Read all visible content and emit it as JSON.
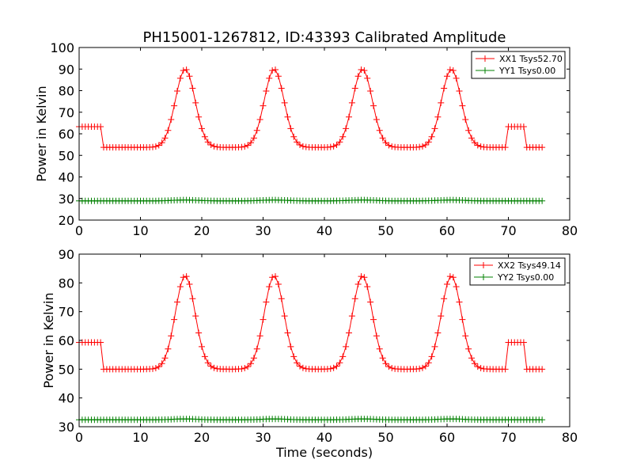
{
  "figure": {
    "title": "PH15001-1267812, ID:43393 Calibrated Amplitude",
    "xlabel": "Time (seconds)"
  },
  "chart_data": [
    {
      "type": "line",
      "title": "PH15001-1267812, ID:43393 Calibrated Amplitude",
      "ylabel": "Power in Kelvin",
      "xlabel": "",
      "xlim": [
        0,
        80
      ],
      "ylim": [
        20,
        100
      ],
      "xticks": [
        0,
        10,
        20,
        30,
        40,
        50,
        60,
        70,
        80
      ],
      "yticks": [
        20,
        30,
        40,
        50,
        60,
        70,
        80,
        90,
        100
      ],
      "grid": false,
      "legend_position": "top-right",
      "series": [
        {
          "name": "XX1 Tsys52.70",
          "color": "#ff0000",
          "marker": "+",
          "base": 53.7,
          "plateau": 63.3,
          "peak": 90.0,
          "peak_times": [
            17.3,
            31.8,
            46.2,
            60.7
          ],
          "peak_sigma": 1.6,
          "plateau_segments": [
            [
              0.0,
              3.8
            ],
            [
              69.7,
              72.6
            ]
          ],
          "x_start": 0.0,
          "x_end": 75.8,
          "x_step": 0.5
        },
        {
          "name": "YY1 Tsys0.00",
          "color": "#008000",
          "marker": "+",
          "base": 28.9,
          "peak": 29.3,
          "peak_times": [
            17.3,
            31.8,
            46.2,
            60.7
          ],
          "peak_sigma": 2.0,
          "x_start": 0.0,
          "x_end": 75.8,
          "x_step": 0.5
        }
      ]
    },
    {
      "type": "line",
      "title": "",
      "ylabel": "Power in Kelvin",
      "xlabel": "Time (seconds)",
      "xlim": [
        0,
        80
      ],
      "ylim": [
        30,
        90
      ],
      "xticks": [
        0,
        10,
        20,
        30,
        40,
        50,
        60,
        70,
        80
      ],
      "yticks": [
        30,
        40,
        50,
        60,
        70,
        80,
        90
      ],
      "grid": false,
      "legend_position": "top-right",
      "series": [
        {
          "name": "XX2 Tsys49.14",
          "color": "#ff0000",
          "marker": "+",
          "base": 50.0,
          "plateau": 59.3,
          "peak": 82.5,
          "peak_times": [
            17.3,
            31.8,
            46.2,
            60.7
          ],
          "peak_sigma": 1.6,
          "plateau_segments": [
            [
              0.0,
              3.8
            ],
            [
              69.7,
              72.6
            ]
          ],
          "x_start": 0.0,
          "x_end": 75.8,
          "x_step": 0.5
        },
        {
          "name": "YY2 Tsys0.00",
          "color": "#008000",
          "marker": "+",
          "base": 32.4,
          "peak": 32.7,
          "peak_times": [
            17.3,
            31.8,
            46.2,
            60.7
          ],
          "peak_sigma": 2.0,
          "x_start": 0.0,
          "x_end": 75.8,
          "x_step": 0.5
        }
      ]
    }
  ]
}
